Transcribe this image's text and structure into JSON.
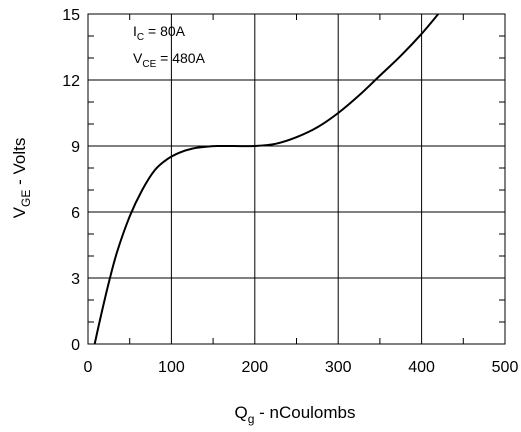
{
  "chart_data": {
    "type": "line",
    "xlabel": {
      "main": "Q",
      "sub": "g",
      "rest": " - nCoulombs"
    },
    "ylabel": {
      "main": "V",
      "sub": "GE",
      "rest": " - Volts"
    },
    "xlim": [
      0,
      500
    ],
    "ylim": [
      0,
      15
    ],
    "xticks": [
      0,
      100,
      200,
      300,
      400,
      500
    ],
    "yticks": [
      0,
      3,
      6,
      9,
      12,
      15
    ],
    "grid": true,
    "annotations": [
      {
        "main": "I",
        "sub": "C",
        "rest": " = 80A"
      },
      {
        "main": "V",
        "sub": "CE",
        "rest": " = 480A"
      }
    ],
    "series": [
      {
        "x": [
          8,
          15,
          25,
          35,
          50,
          65,
          80,
          95,
          110,
          125,
          140,
          155,
          175,
          200,
          225,
          250,
          275,
          300,
          325,
          350,
          375,
          400,
          420
        ],
        "y": [
          0,
          1.2,
          2.8,
          4.2,
          5.8,
          7.0,
          7.9,
          8.4,
          8.7,
          8.88,
          8.96,
          9.0,
          9.0,
          9.0,
          9.1,
          9.4,
          9.85,
          10.5,
          11.3,
          12.2,
          13.1,
          14.1,
          15.0
        ]
      }
    ]
  }
}
